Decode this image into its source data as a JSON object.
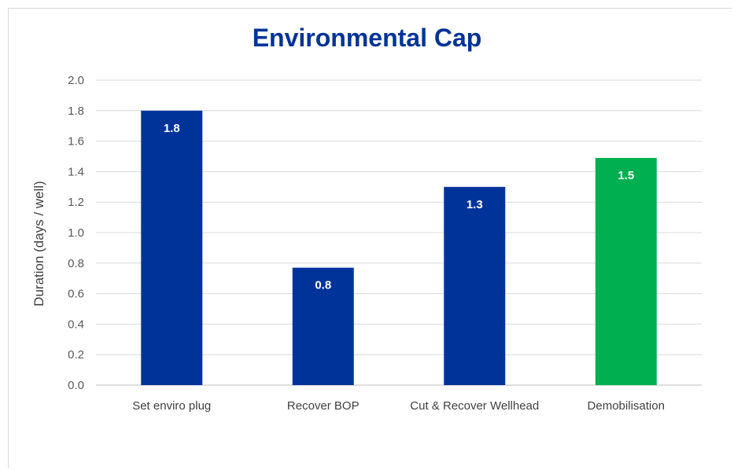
{
  "chart_data": {
    "type": "bar",
    "title": "Environmental Cap",
    "xlabel": "",
    "ylabel": "Duration (days / well)",
    "ylim": [
      0,
      2.0
    ],
    "yticks": [
      "0.0",
      "0.2",
      "0.4",
      "0.6",
      "0.8",
      "1.0",
      "1.2",
      "1.4",
      "1.6",
      "1.8",
      "2.0"
    ],
    "categories": [
      "Set enviro plug",
      "Recover BOP",
      "Cut & Recover Wellhead",
      "Demobilisation"
    ],
    "values": [
      1.8,
      0.77,
      1.3,
      1.49
    ],
    "data_labels": [
      "1.8",
      "0.8",
      "1.3",
      "1.5"
    ],
    "colors": [
      "#003399",
      "#003399",
      "#003399",
      "#00b050"
    ],
    "grid": true,
    "legend": "none"
  }
}
